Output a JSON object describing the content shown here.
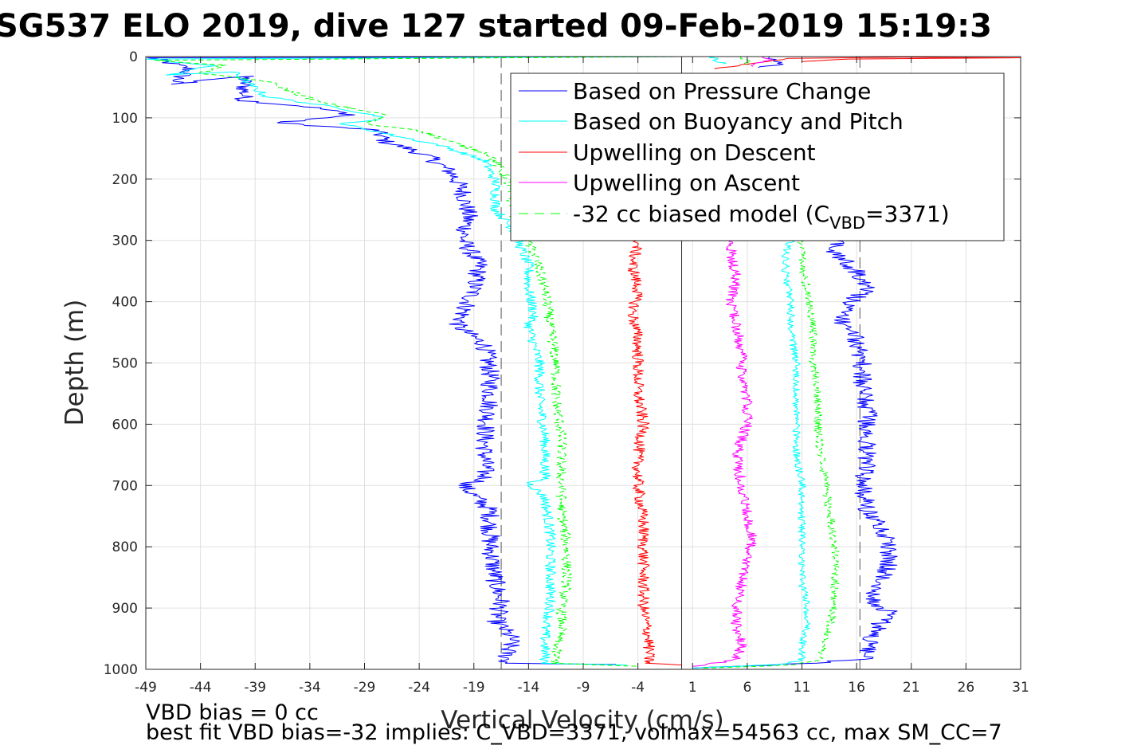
{
  "title": "SG537 ELO 2019, dive 127 started 09-Feb-2019 15:19:3",
  "notes": {
    "bias": "VBD bias = 0 cc",
    "fit": "best fit VBD bias=-32 implies: C_VBD=3371, volmax=54563 cc, max SM_CC=7"
  },
  "colors": {
    "pressure": "#0000ff",
    "buoyancy": "#00ffff",
    "upwelling_descent": "#ff0000",
    "upwelling_ascent": "#ff00ff",
    "biased_model": "#00ff00",
    "grid": "#e0e0e0",
    "axis": "#262626",
    "reference_lines": "#555555"
  },
  "chart_data": {
    "type": "line",
    "title": "SG537 ELO 2019, dive 127 started 09-Feb-2019 15:19:3",
    "xlabel": "Vertical Velocity (cm/s)",
    "ylabel": "Depth (m)",
    "xlim": [
      -49,
      31
    ],
    "ylim": [
      0,
      1000
    ],
    "y_reversed": true,
    "xticks": [
      -49,
      -44,
      -39,
      -34,
      -29,
      -24,
      -19,
      -14,
      -9,
      -4,
      1,
      6,
      11,
      16,
      21,
      26,
      31
    ],
    "yticks": [
      0,
      100,
      200,
      300,
      400,
      500,
      600,
      700,
      800,
      900,
      1000
    ],
    "grid": true,
    "legend": {
      "location": "top-right",
      "entries": [
        {
          "label": "Based on Pressure Change",
          "series": "pressure"
        },
        {
          "label": "Based on Buoyancy and Pitch",
          "series": "buoyancy"
        },
        {
          "label": "Upwelling on Descent",
          "series": "upwelling_descent"
        },
        {
          "label": "Upwelling on Ascent",
          "series": "upwelling_ascent"
        },
        {
          "label_main": "-32 cc biased model (C",
          "label_sub": "VBD",
          "label_end": "=3371)",
          "series": "biased_model"
        }
      ]
    },
    "reference_lines": [
      {
        "orientation": "vertical",
        "x": -16.5,
        "style": "dashed"
      },
      {
        "orientation": "vertical",
        "x": 16.3,
        "style": "dashed"
      },
      {
        "orientation": "vertical",
        "x": 0,
        "style": "solid"
      }
    ],
    "series": [
      {
        "key": "pressure_descent",
        "legend_key": "pressure",
        "noise": 0.9,
        "points": [
          [
            0.0,
            0
          ],
          [
            -48.5,
            2
          ],
          [
            -45,
            20
          ],
          [
            -46.5,
            45
          ],
          [
            -40,
            32
          ],
          [
            -40,
            72
          ],
          [
            -34,
            82
          ],
          [
            -30,
            95
          ],
          [
            -37,
            108
          ],
          [
            -28,
            120
          ],
          [
            -27,
            140
          ],
          [
            -25,
            150
          ],
          [
            -23,
            165
          ],
          [
            -21,
            190
          ],
          [
            -20,
            220
          ],
          [
            -19.5,
            260
          ],
          [
            -20,
            300
          ],
          [
            -18.5,
            340
          ],
          [
            -19,
            380
          ],
          [
            -20.5,
            440
          ],
          [
            -18,
            470
          ],
          [
            -17.5,
            520
          ],
          [
            -17.5,
            560
          ],
          [
            -18,
            620
          ],
          [
            -18,
            690
          ],
          [
            -20,
            700
          ],
          [
            -17.5,
            740
          ],
          [
            -17.5,
            800
          ],
          [
            -17,
            860
          ],
          [
            -16.5,
            890
          ],
          [
            -17,
            920
          ],
          [
            -15.5,
            950
          ],
          [
            -16,
            975
          ],
          [
            -16,
            990
          ],
          [
            -6,
            992
          ]
        ]
      },
      {
        "key": "pressure_ascent",
        "legend_key": "pressure",
        "noise": 0.9,
        "points": [
          [
            1,
            998
          ],
          [
            12,
            990
          ],
          [
            17,
            982
          ],
          [
            17,
            960
          ],
          [
            18,
            930
          ],
          [
            19,
            905
          ],
          [
            17.5,
            890
          ],
          [
            18,
            860
          ],
          [
            19,
            830
          ],
          [
            19,
            800
          ],
          [
            18.5,
            770
          ],
          [
            17,
            740
          ],
          [
            16.5,
            700
          ],
          [
            17,
            660
          ],
          [
            17,
            620
          ],
          [
            17,
            580
          ],
          [
            16.5,
            540
          ],
          [
            16.5,
            500
          ],
          [
            16,
            460
          ],
          [
            14.5,
            430
          ],
          [
            15.5,
            400
          ],
          [
            17,
            380
          ],
          [
            16,
            350
          ],
          [
            14,
            320
          ],
          [
            14,
            300
          ]
        ]
      },
      {
        "key": "pressure_surface",
        "legend_key": "pressure",
        "noise": 0.7,
        "points": [
          [
            8,
            0
          ],
          [
            8.5,
            8
          ],
          [
            9,
            14
          ],
          [
            7,
            18
          ]
        ]
      },
      {
        "key": "buoyancy_descent",
        "legend_key": "buoyancy",
        "noise": 0.5,
        "points": [
          [
            0.0,
            0
          ],
          [
            -49,
            4
          ],
          [
            -43,
            15
          ],
          [
            -47,
            30
          ],
          [
            -41,
            25
          ],
          [
            -38,
            65
          ],
          [
            -31,
            85
          ],
          [
            -27,
            100
          ],
          [
            -31,
            110
          ],
          [
            -26,
            130
          ],
          [
            -22,
            145
          ],
          [
            -18,
            170
          ],
          [
            -17,
            205
          ],
          [
            -17,
            250
          ],
          [
            -15.5,
            280
          ],
          [
            -15,
            300
          ],
          [
            -14,
            340
          ],
          [
            -14,
            380
          ],
          [
            -13.5,
            420
          ],
          [
            -14,
            440
          ],
          [
            -13,
            500
          ],
          [
            -13,
            560
          ],
          [
            -12.5,
            620
          ],
          [
            -12.5,
            690
          ],
          [
            -14,
            695
          ],
          [
            -12.5,
            720
          ],
          [
            -12,
            780
          ],
          [
            -12,
            850
          ],
          [
            -12,
            900
          ],
          [
            -12.5,
            935
          ],
          [
            -12.5,
            965
          ],
          [
            -12.5,
            990
          ],
          [
            -5,
            993
          ]
        ]
      },
      {
        "key": "buoyancy_ascent",
        "legend_key": "buoyancy",
        "noise": 0.35,
        "points": [
          [
            1,
            998
          ],
          [
            9,
            992
          ],
          [
            11,
            985
          ],
          [
            11,
            960
          ],
          [
            11.5,
            930
          ],
          [
            11.5,
            900
          ],
          [
            11,
            860
          ],
          [
            11,
            820
          ],
          [
            11,
            780
          ],
          [
            11,
            740
          ],
          [
            11,
            700
          ],
          [
            10.5,
            650
          ],
          [
            10.5,
            600
          ],
          [
            10.5,
            550
          ],
          [
            10.5,
            500
          ],
          [
            10,
            450
          ],
          [
            10,
            400
          ],
          [
            9.5,
            360
          ],
          [
            9.5,
            320
          ],
          [
            10,
            300
          ]
        ]
      },
      {
        "key": "buoyancy_surface",
        "legend_key": "buoyancy",
        "noise": 0.6,
        "points": [
          [
            3,
            0
          ],
          [
            3.2,
            6
          ],
          [
            3.8,
            12
          ]
        ]
      },
      {
        "key": "biased_descent",
        "legend_key": "biased_model",
        "dashed": true,
        "noise": 0.5,
        "points": [
          [
            0.0,
            0
          ],
          [
            -48,
            6
          ],
          [
            -42,
            14
          ],
          [
            -44,
            28
          ],
          [
            -38,
            40
          ],
          [
            -36,
            55
          ],
          [
            -33,
            75
          ],
          [
            -27,
            95
          ],
          [
            -29,
            110
          ],
          [
            -24,
            120
          ],
          [
            -21,
            140
          ],
          [
            -17.5,
            160
          ],
          [
            -16,
            200
          ],
          [
            -15.5,
            240
          ],
          [
            -15,
            280
          ],
          [
            -13.5,
            320
          ],
          [
            -12.5,
            380
          ],
          [
            -12,
            440
          ],
          [
            -11.5,
            500
          ],
          [
            -11.5,
            560
          ],
          [
            -11,
            620
          ],
          [
            -11,
            690
          ],
          [
            -11,
            740
          ],
          [
            -10.5,
            800
          ],
          [
            -10.5,
            860
          ],
          [
            -11,
            900
          ],
          [
            -11,
            935
          ],
          [
            -11.5,
            965
          ],
          [
            -11.5,
            990
          ],
          [
            -4,
            995
          ]
        ]
      },
      {
        "key": "biased_ascent",
        "legend_key": "biased_model",
        "dashed": true,
        "noise": 0.4,
        "points": [
          [
            2,
            998
          ],
          [
            10,
            993
          ],
          [
            12.5,
            985
          ],
          [
            13,
            960
          ],
          [
            13.5,
            930
          ],
          [
            14,
            900
          ],
          [
            14,
            860
          ],
          [
            14,
            800
          ],
          [
            13.5,
            740
          ],
          [
            13,
            680
          ],
          [
            12.5,
            620
          ],
          [
            12.5,
            560
          ],
          [
            12,
            500
          ],
          [
            12,
            440
          ],
          [
            11.5,
            380
          ],
          [
            11,
            340
          ],
          [
            11,
            300
          ]
        ]
      },
      {
        "key": "biased_surface",
        "legend_key": "biased_model",
        "dashed": true,
        "noise": 0.5,
        "points": [
          [
            5.5,
            0
          ],
          [
            5.8,
            7
          ],
          [
            6.2,
            13
          ]
        ]
      },
      {
        "key": "upwelling_descent",
        "legend_key": "upwelling_descent",
        "noise": 0.55,
        "points": [
          [
            -4,
            300
          ],
          [
            -4.5,
            340
          ],
          [
            -4,
            380
          ],
          [
            -4.5,
            420
          ],
          [
            -4,
            460
          ],
          [
            -4,
            500
          ],
          [
            -4,
            550
          ],
          [
            -3.5,
            600
          ],
          [
            -4,
            650
          ],
          [
            -4,
            700
          ],
          [
            -3.5,
            760
          ],
          [
            -3.5,
            800
          ],
          [
            -3.5,
            850
          ],
          [
            -3.5,
            900
          ],
          [
            -3,
            950
          ],
          [
            -3,
            990
          ],
          [
            0,
            993
          ]
        ]
      },
      {
        "key": "upwelling_descent_surface",
        "legend_key": "upwelling_descent",
        "noise": 0.4,
        "points": [
          [
            11,
            8
          ],
          [
            15,
            4
          ],
          [
            31,
            2
          ],
          [
            20,
            1
          ],
          [
            10,
            3
          ],
          [
            7,
            10
          ],
          [
            3,
            20
          ]
        ]
      },
      {
        "key": "upwelling_ascent",
        "legend_key": "upwelling_ascent",
        "noise": 0.5,
        "points": [
          [
            1,
            995
          ],
          [
            5,
            985
          ],
          [
            5.5,
            960
          ],
          [
            5,
            930
          ],
          [
            5,
            900
          ],
          [
            5.5,
            860
          ],
          [
            6,
            820
          ],
          [
            6.5,
            790
          ],
          [
            6,
            750
          ],
          [
            5.5,
            700
          ],
          [
            5,
            650
          ],
          [
            6,
            600
          ],
          [
            6,
            560
          ],
          [
            5.5,
            520
          ],
          [
            5.5,
            480
          ],
          [
            5,
            440
          ],
          [
            4.5,
            400
          ],
          [
            5,
            360
          ],
          [
            4.5,
            320
          ],
          [
            4.5,
            300
          ]
        ]
      },
      {
        "key": "upwelling_ascent_surface",
        "legend_key": "upwelling_ascent",
        "noise": 0.5,
        "points": [
          [
            7.5,
            0
          ],
          [
            8,
            6
          ],
          [
            7,
            12
          ],
          [
            6.5,
            16
          ]
        ]
      }
    ]
  }
}
